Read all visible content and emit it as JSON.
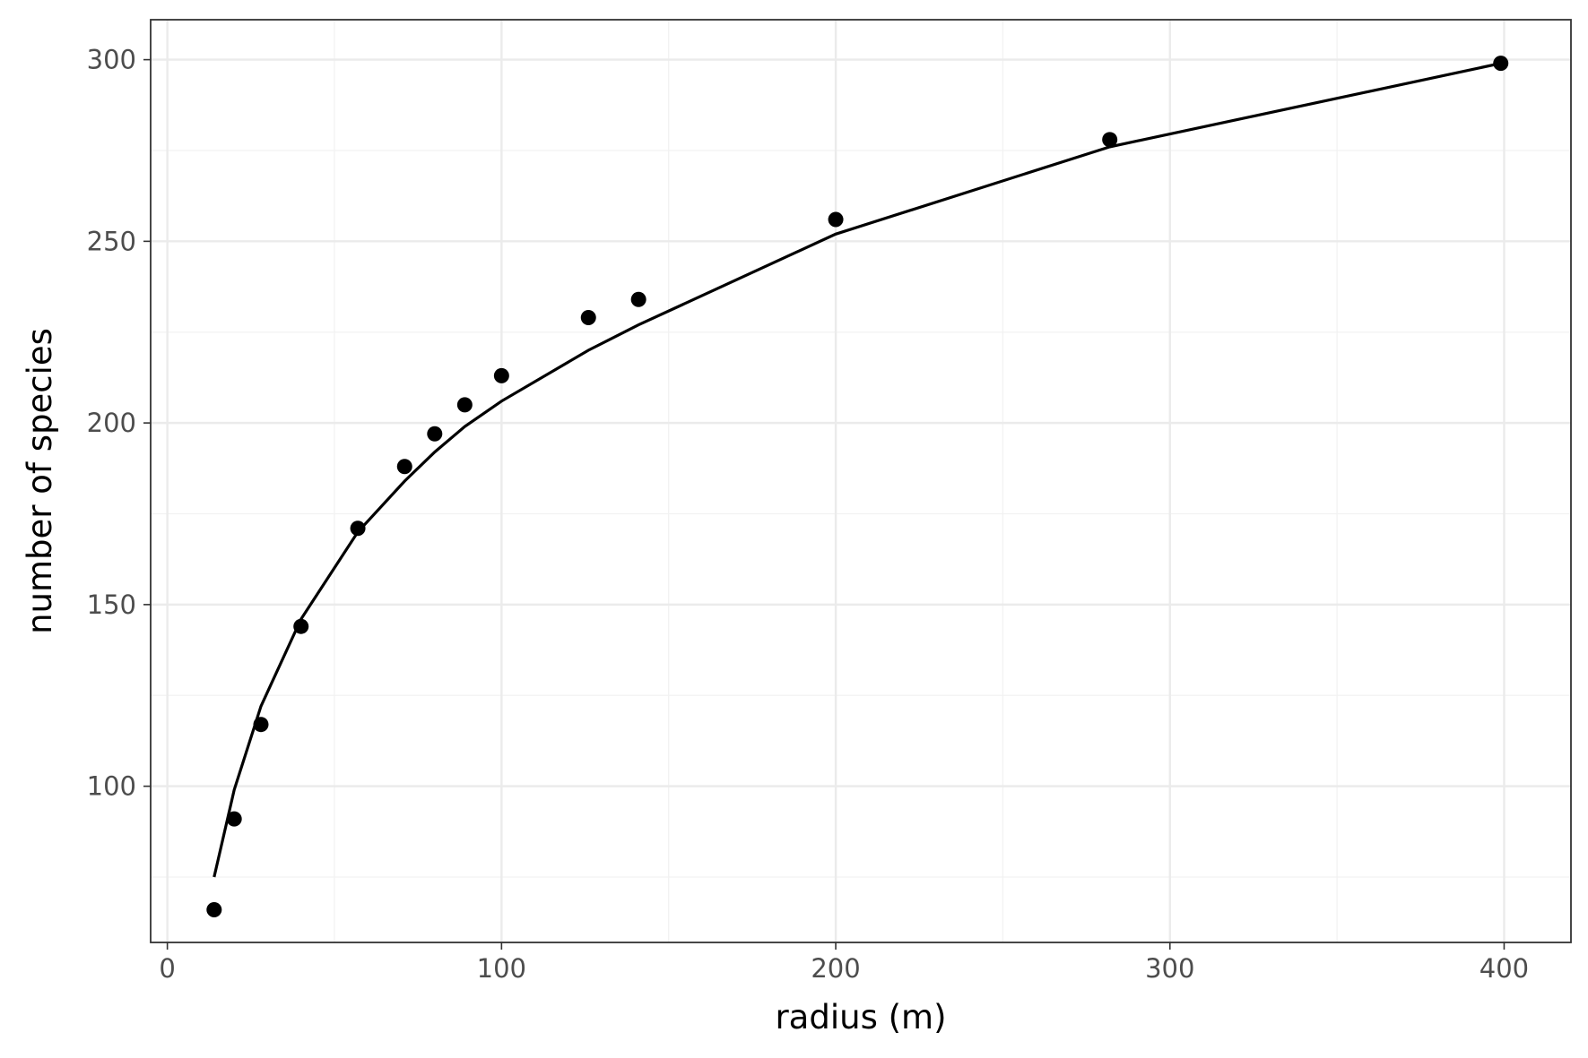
{
  "chart_data": {
    "type": "scatter",
    "title": "",
    "xlabel": "radius (m)",
    "ylabel": "number of species",
    "xlim": [
      -5,
      420
    ],
    "ylim": [
      57,
      311
    ],
    "x_ticks": [
      0,
      100,
      200,
      300,
      400
    ],
    "y_ticks": [
      100,
      150,
      200,
      250,
      300
    ],
    "x_tick_labels": [
      "0",
      "100",
      "200",
      "300",
      "400"
    ],
    "y_tick_labels": [
      "100",
      "150",
      "200",
      "250",
      "300"
    ],
    "grid": true,
    "legend": "none",
    "series": [
      {
        "type": "scatter",
        "x": [
          14,
          20,
          28,
          40,
          57,
          71,
          80,
          89,
          100,
          126,
          141,
          200,
          282,
          399
        ],
        "y": [
          66,
          91,
          117,
          144,
          171,
          188,
          197,
          205,
          213,
          229,
          234,
          256,
          278,
          299
        ]
      },
      {
        "type": "line",
        "x": [
          14,
          20,
          28,
          40,
          57,
          71,
          80,
          89,
          100,
          126,
          141,
          200,
          282,
          399
        ],
        "y": [
          75,
          99,
          122,
          146,
          170,
          184,
          192,
          199,
          206,
          220,
          227,
          252,
          276,
          299
        ]
      }
    ],
    "colors": {
      "points": "#000000",
      "line": "#000000",
      "grid": "#ebebeb"
    }
  }
}
